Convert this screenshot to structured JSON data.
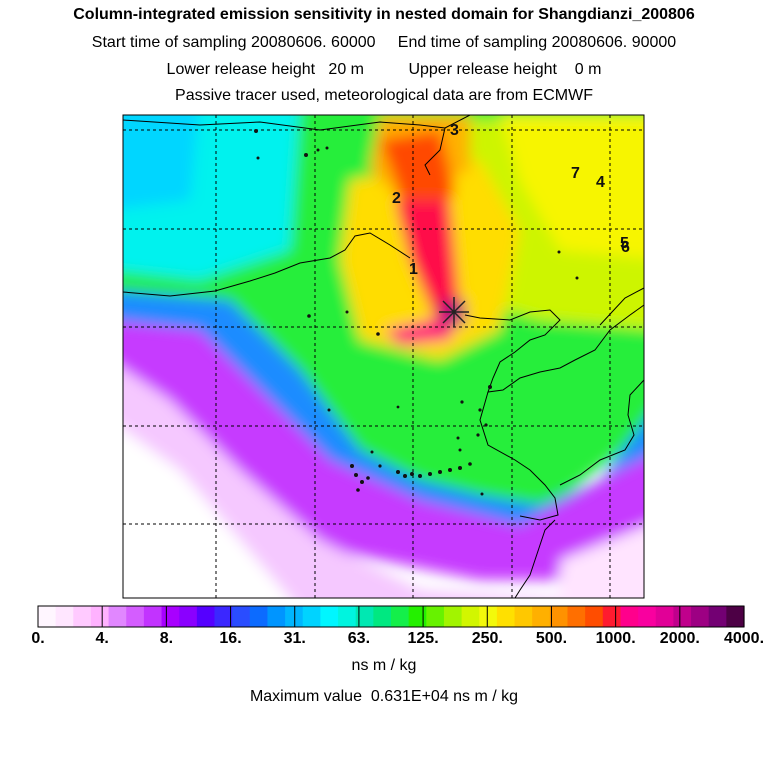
{
  "header": {
    "title": "Column-integrated emission sensitivity in nested domain for Shangdianzi_200806",
    "sampling_line": "Start time of sampling 20080606. 60000     End time of sampling 20080606. 90000",
    "release_line": "Lower release height   20 m          Upper release height    0 m",
    "tracer_line": "Passive tracer used, meteorological data are from ECMWF"
  },
  "map": {
    "markers": [
      {
        "label": "1"
      },
      {
        "label": "2"
      },
      {
        "label": "3"
      },
      {
        "label": "4"
      },
      {
        "label": "5"
      },
      {
        "label": "6"
      },
      {
        "label": "7"
      }
    ]
  },
  "colorbar": {
    "tick_labels": [
      "0.",
      "4.",
      "8.",
      "16.",
      "31.",
      "63.",
      "125.",
      "250.",
      "500.",
      "1000.",
      "2000.",
      "4000."
    ],
    "colors": [
      "#fff6ff",
      "#ffe6ff",
      "#ffcaff",
      "#ffb2ff",
      "#e187ff",
      "#d45dff",
      "#c233ff",
      "#a800ff",
      "#8a00ff",
      "#5500ff",
      "#3b27ff",
      "#2a4dff",
      "#0c6bff",
      "#0095ff",
      "#00b6ff",
      "#00d3ff",
      "#00f6ff",
      "#00f4df",
      "#00e8b2",
      "#00e881",
      "#14ef4a",
      "#24f000",
      "#67f200",
      "#a2f400",
      "#d2f600",
      "#f3f90b",
      "#ffe000",
      "#ffc800",
      "#ffb000",
      "#ff9200",
      "#ff6f00",
      "#ff4d00",
      "#ff1b2f",
      "#ff008c",
      "#f9009f",
      "#e10097",
      "#c0008c",
      "#9d0083",
      "#730073",
      "#4d0045"
    ],
    "units": "ns m / kg"
  },
  "footer": {
    "max_value": "Maximum value  0.631E+04 ns m / kg"
  }
}
